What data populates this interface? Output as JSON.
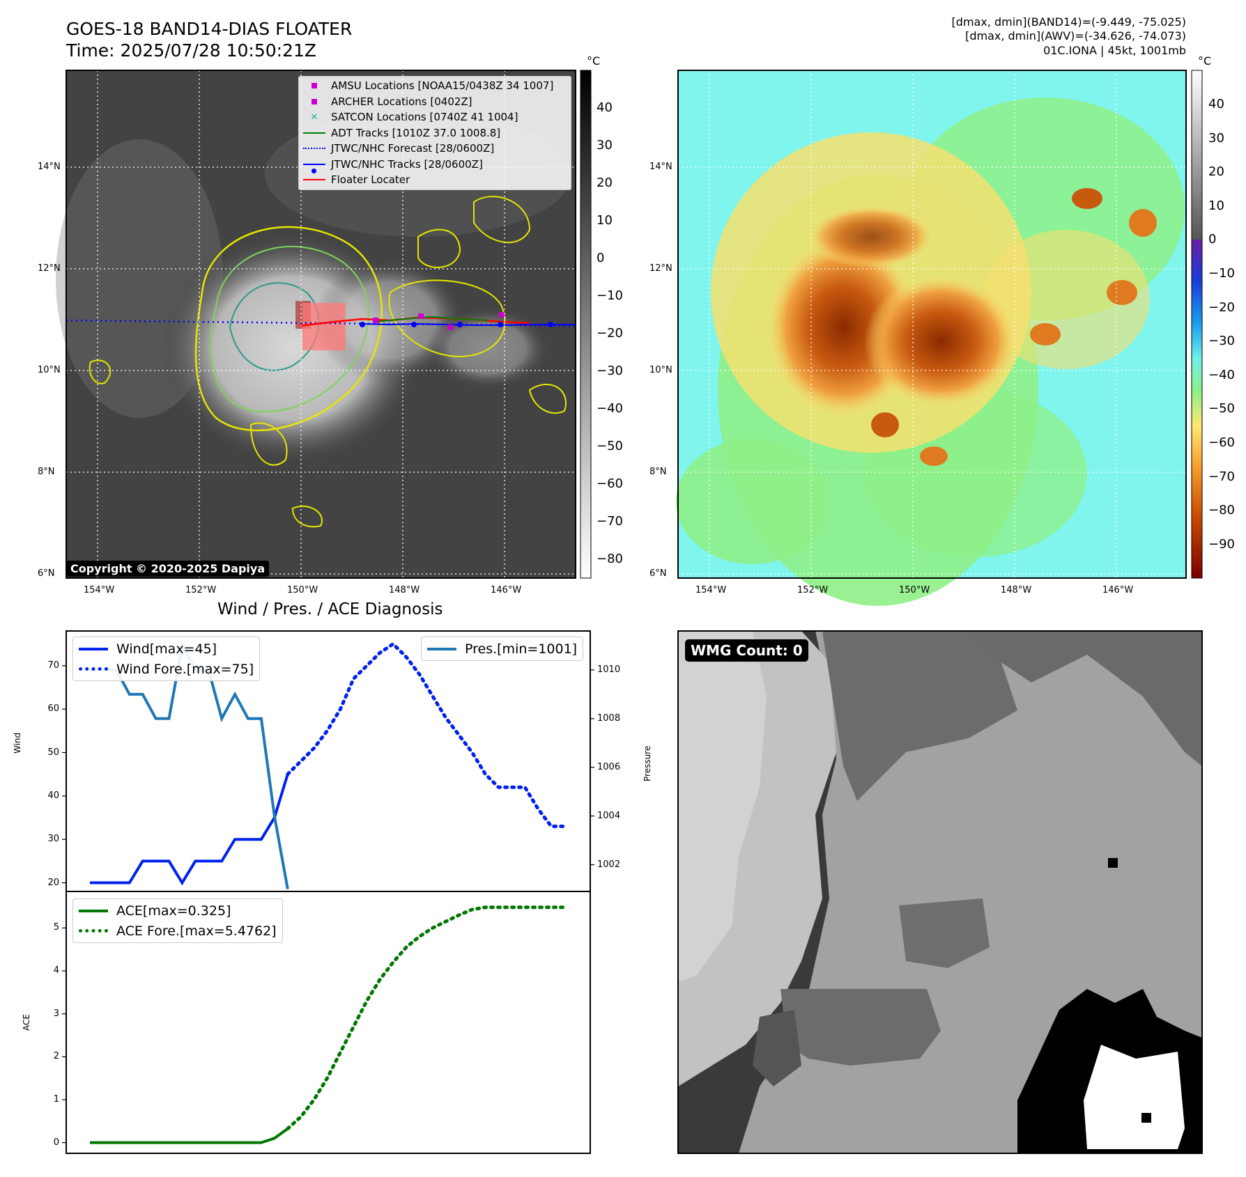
{
  "header": {
    "title_line1": "GOES-18 BAND14-DIAS FLOATER",
    "title_line2": "Time: 2025/07/28 10:50:21Z",
    "info_line1": "[dmax, dmin](BAND14)=(-9.449, -75.025)",
    "info_line2": "[dmax, dmin](AWV)=(-34.626, -74.073)",
    "info_line3": "01C.IONA | 45kt, 1001mb"
  },
  "map": {
    "lat_labels": [
      "14°N",
      "12°N",
      "10°N",
      "8°N",
      "6°N"
    ],
    "lon_labels": [
      "154°W",
      "152°W",
      "150°W",
      "148°W",
      "146°W"
    ],
    "copyright": "Copyright © 2020-2025 Dapiya"
  },
  "colorbars": {
    "unit": "°C",
    "ir_ticks": [
      "40",
      "30",
      "20",
      "10",
      "0",
      "−10",
      "−20",
      "−30",
      "−40",
      "−50",
      "−60",
      "−70",
      "−80"
    ],
    "awv_ticks": [
      "40",
      "30",
      "20",
      "10",
      "0",
      "−10",
      "−20",
      "−30",
      "−40",
      "−50",
      "−60",
      "−70",
      "−80",
      "−90"
    ]
  },
  "legend": {
    "items": [
      {
        "label": "AMSU Locations [NOAA15/0438Z 34 1007]",
        "color": "#cc00cc",
        "marker": "square"
      },
      {
        "label": "ARCHER Locations [0402Z]",
        "color": "#cc00cc",
        "marker": "square"
      },
      {
        "label": "SATCON Locations [0740Z 41 1004]",
        "color": "#20b2aa",
        "marker": "x"
      },
      {
        "label": "ADT Tracks [1010Z 37.0 1008.8]",
        "color": "#008000",
        "marker": "line"
      },
      {
        "label": "JTWC/NHC Forecast [28/0600Z]",
        "color": "#0000ff",
        "marker": "dotted"
      },
      {
        "label": "JTWC/NHC Tracks [28/0600Z]",
        "color": "#0000ff",
        "marker": "line-dot"
      },
      {
        "label": "Floater Locater",
        "color": "#ff0000",
        "marker": "line"
      }
    ]
  },
  "diagnosis": {
    "title": "Wind / Pres. / ACE Diagnosis",
    "wind_ylabel": "Wind",
    "pres_ylabel": "Pressure",
    "ace_ylabel": "ACE",
    "wind_legend": [
      "Wind[max=45]",
      "Wind Fore.[max=75]"
    ],
    "pres_legend": [
      "Pres.[min=1001]"
    ],
    "ace_legend": [
      "ACE[max=0.325]",
      "ACE Fore.[max=5.4762]"
    ]
  },
  "wmg": {
    "badge": "WMG Count: 0"
  },
  "colors": {
    "wind": "#0022ee",
    "pressure": "#1f77b4",
    "ace": "#007700",
    "track_blue": "#0000ff",
    "floater_red": "#ff0000"
  },
  "chart_data": [
    {
      "type": "line",
      "name": "wind",
      "ylim": [
        18,
        78
      ],
      "yticks": [
        20,
        30,
        40,
        50,
        60,
        70
      ],
      "x": [
        0,
        1,
        2,
        3,
        4,
        5,
        6,
        7,
        8,
        9,
        10,
        11,
        12,
        13,
        14,
        15,
        16,
        17,
        18,
        19,
        20,
        21,
        22,
        23,
        24,
        25,
        26,
        27,
        28,
        29,
        30,
        31,
        32,
        33,
        34,
        35,
        36
      ],
      "series": [
        {
          "name": "Wind[max=45]",
          "style": "solid",
          "x": [
            0,
            1,
            2,
            3,
            4,
            5,
            6,
            7,
            8,
            9,
            10,
            11,
            12,
            13,
            14,
            15
          ],
          "values": [
            20,
            20,
            20,
            20,
            25,
            25,
            25,
            20,
            25,
            25,
            25,
            30,
            30,
            30,
            35,
            45
          ]
        },
        {
          "name": "Wind Fore.[max=75]",
          "style": "dotted",
          "x": [
            15,
            16,
            17,
            18,
            19,
            20,
            21,
            22,
            23,
            24,
            25,
            26,
            27,
            28,
            29,
            30,
            31,
            32,
            33,
            34,
            35,
            36
          ],
          "values": [
            45,
            48,
            51,
            55,
            60,
            67,
            70,
            73,
            75,
            72,
            68,
            63,
            58,
            54,
            50,
            45,
            42,
            42,
            42,
            37,
            33,
            33
          ]
        }
      ]
    },
    {
      "type": "line",
      "name": "pressure",
      "ylim": [
        1000.9,
        1011.6
      ],
      "yticks": [
        1002,
        1004,
        1006,
        1008,
        1010
      ],
      "series": [
        {
          "name": "Pres.[min=1001]",
          "style": "solid",
          "x": [
            0,
            1,
            2,
            3,
            4,
            5,
            6,
            7,
            8,
            9,
            10,
            11,
            12,
            13,
            14,
            15
          ],
          "values": [
            1010,
            1010,
            1010,
            1009,
            1009,
            1008,
            1008,
            1011,
            1010,
            1010,
            1008,
            1009,
            1008,
            1008,
            1004,
            1001
          ]
        }
      ]
    },
    {
      "type": "line",
      "name": "ace",
      "ylim": [
        -0.25,
        5.85
      ],
      "yticks": [
        0,
        1,
        2,
        3,
        4,
        5
      ],
      "series": [
        {
          "name": "ACE[max=0.325]",
          "style": "solid",
          "x": [
            0,
            1,
            2,
            3,
            4,
            5,
            6,
            7,
            8,
            9,
            10,
            11,
            12,
            13,
            14,
            15
          ],
          "values": [
            0,
            0,
            0,
            0,
            0,
            0,
            0,
            0,
            0,
            0,
            0,
            0,
            0,
            0,
            0.1,
            0.325
          ]
        },
        {
          "name": "ACE Fore.[max=5.4762]",
          "style": "dotted",
          "x": [
            15,
            16,
            17,
            18,
            19,
            20,
            21,
            22,
            23,
            24,
            25,
            26,
            27,
            28,
            29,
            30,
            31,
            32,
            33,
            34,
            35,
            36
          ],
          "values": [
            0.325,
            0.6,
            1.0,
            1.5,
            2.1,
            2.7,
            3.3,
            3.8,
            4.2,
            4.55,
            4.8,
            5.0,
            5.15,
            5.3,
            5.43,
            5.48,
            5.48,
            5.48,
            5.48,
            5.48,
            5.48,
            5.48
          ]
        }
      ]
    }
  ]
}
